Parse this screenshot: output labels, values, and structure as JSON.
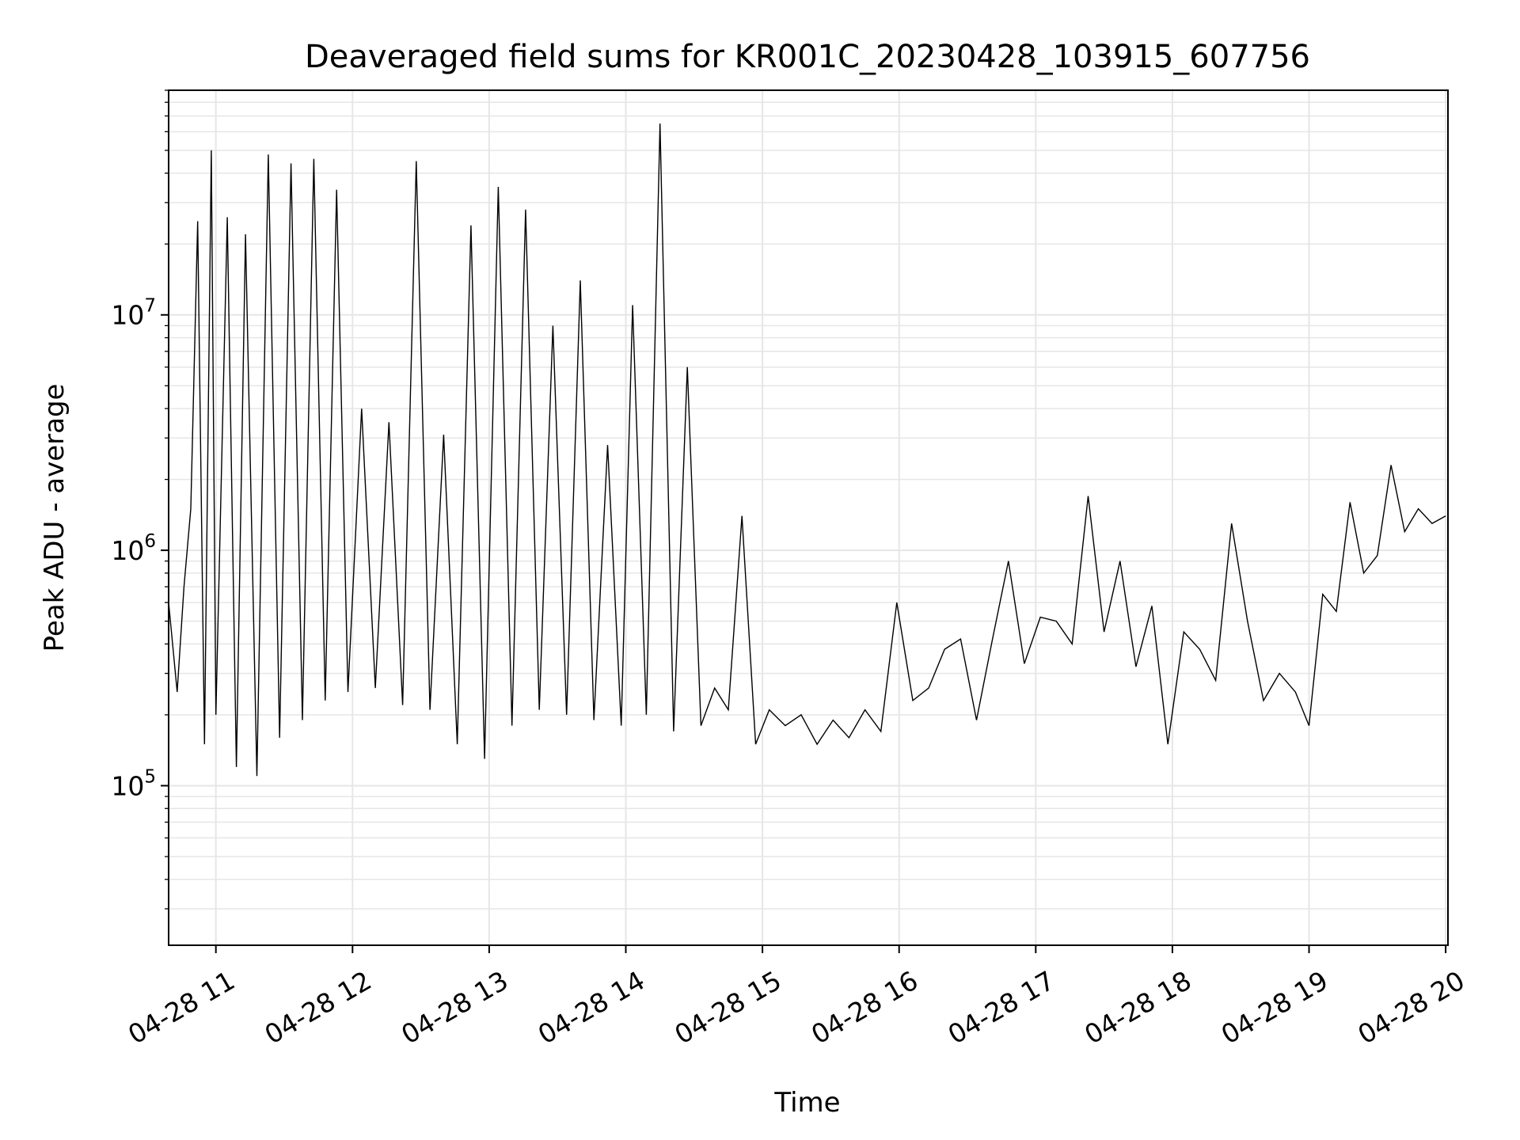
{
  "chart_data": {
    "type": "line",
    "title": "Deaveraged field sums for KR001C_20230428_103915_607756",
    "xlabel": "Time",
    "ylabel": "Peak ADU - average",
    "y_scale": "log",
    "ylim": [
      21000,
      90000000
    ],
    "xlim": [
      "2023-04-28T10:39:15",
      "2023-04-28T20:01:00"
    ],
    "grid": true,
    "line_color": "#000000",
    "grid_color": "#e6e6e6",
    "x_ticks": [
      {
        "label": "04-28 11",
        "time": "2023-04-28T11:00:00"
      },
      {
        "label": "04-28 12",
        "time": "2023-04-28T12:00:00"
      },
      {
        "label": "04-28 13",
        "time": "2023-04-28T13:00:00"
      },
      {
        "label": "04-28 14",
        "time": "2023-04-28T14:00:00"
      },
      {
        "label": "04-28 15",
        "time": "2023-04-28T15:00:00"
      },
      {
        "label": "04-28 16",
        "time": "2023-04-28T16:00:00"
      },
      {
        "label": "04-28 17",
        "time": "2023-04-28T17:00:00"
      },
      {
        "label": "04-28 18",
        "time": "2023-04-28T18:00:00"
      },
      {
        "label": "04-28 19",
        "time": "2023-04-28T19:00:00"
      },
      {
        "label": "04-28 20",
        "time": "2023-04-28T20:00:00"
      }
    ],
    "y_ticks": [
      {
        "base": "10",
        "exp": "5",
        "value": 100000
      },
      {
        "base": "10",
        "exp": "6",
        "value": 1000000
      },
      {
        "base": "10",
        "exp": "7",
        "value": 10000000
      }
    ],
    "series": [
      {
        "x": [
          "2023-04-28T10:39:15",
          "2023-04-28T10:43:00",
          "2023-04-28T10:46:00",
          "2023-04-28T10:49:00",
          "2023-04-28T10:52:00",
          "2023-04-28T10:55:00",
          "2023-04-28T10:58:00",
          "2023-04-28T11:00:00",
          "2023-04-28T11:05:00",
          "2023-04-28T11:09:00",
          "2023-04-28T11:13:00",
          "2023-04-28T11:18:00",
          "2023-04-28T11:23:00",
          "2023-04-28T11:28:00",
          "2023-04-28T11:33:00",
          "2023-04-28T11:38:00",
          "2023-04-28T11:43:00",
          "2023-04-28T11:48:00",
          "2023-04-28T11:53:00",
          "2023-04-28T11:58:00",
          "2023-04-28T12:04:00",
          "2023-04-28T12:10:00",
          "2023-04-28T12:16:00",
          "2023-04-28T12:22:00",
          "2023-04-28T12:28:00",
          "2023-04-28T12:34:00",
          "2023-04-28T12:40:00",
          "2023-04-28T12:46:00",
          "2023-04-28T12:52:00",
          "2023-04-28T12:58:00",
          "2023-04-28T13:04:00",
          "2023-04-28T13:10:00",
          "2023-04-28T13:16:00",
          "2023-04-28T13:22:00",
          "2023-04-28T13:28:00",
          "2023-04-28T13:34:00",
          "2023-04-28T13:40:00",
          "2023-04-28T13:46:00",
          "2023-04-28T13:52:00",
          "2023-04-28T13:58:00",
          "2023-04-28T14:03:00",
          "2023-04-28T14:09:00",
          "2023-04-28T14:15:00",
          "2023-04-28T14:21:00",
          "2023-04-28T14:27:00",
          "2023-04-28T14:33:00",
          "2023-04-28T14:39:00",
          "2023-04-28T14:45:00",
          "2023-04-28T14:51:00",
          "2023-04-28T14:57:00",
          "2023-04-28T15:03:00",
          "2023-04-28T15:10:00",
          "2023-04-28T15:17:00",
          "2023-04-28T15:24:00",
          "2023-04-28T15:31:00",
          "2023-04-28T15:38:00",
          "2023-04-28T15:45:00",
          "2023-04-28T15:52:00",
          "2023-04-28T15:59:00",
          "2023-04-28T16:06:00",
          "2023-04-28T16:13:00",
          "2023-04-28T16:20:00",
          "2023-04-28T16:27:00",
          "2023-04-28T16:34:00",
          "2023-04-28T16:41:00",
          "2023-04-28T16:48:00",
          "2023-04-28T16:55:00",
          "2023-04-28T17:02:00",
          "2023-04-28T17:09:00",
          "2023-04-28T17:16:00",
          "2023-04-28T17:23:00",
          "2023-04-28T17:30:00",
          "2023-04-28T17:37:00",
          "2023-04-28T17:44:00",
          "2023-04-28T17:51:00",
          "2023-04-28T17:58:00",
          "2023-04-28T18:05:00",
          "2023-04-28T18:12:00",
          "2023-04-28T18:19:00",
          "2023-04-28T18:26:00",
          "2023-04-28T18:33:00",
          "2023-04-28T18:40:00",
          "2023-04-28T18:47:00",
          "2023-04-28T18:54:00",
          "2023-04-28T19:00:00",
          "2023-04-28T19:06:00",
          "2023-04-28T19:12:00",
          "2023-04-28T19:18:00",
          "2023-04-28T19:24:00",
          "2023-04-28T19:30:00",
          "2023-04-28T19:36:00",
          "2023-04-28T19:42:00",
          "2023-04-28T19:48:00",
          "2023-04-28T19:54:00",
          "2023-04-28T20:00:00"
        ],
        "y": [
          600000,
          250000,
          700000,
          1500000,
          25000000,
          150000,
          50000000,
          200000,
          26000000,
          120000,
          22000000,
          110000,
          48000000,
          160000,
          44000000,
          190000,
          46000000,
          230000,
          34000000,
          250000,
          4000000,
          260000,
          3500000,
          220000,
          45000000,
          210000,
          3100000,
          150000,
          24000000,
          130000,
          35000000,
          180000,
          28000000,
          210000,
          9000000,
          200000,
          14000000,
          190000,
          2800000,
          180000,
          11000000,
          200000,
          65000000,
          170000,
          6000000,
          180000,
          260000,
          210000,
          1400000,
          150000,
          210000,
          180000,
          200000,
          150000,
          190000,
          160000,
          210000,
          170000,
          600000,
          230000,
          260000,
          380000,
          420000,
          190000,
          420000,
          900000,
          330000,
          520000,
          500000,
          400000,
          1700000,
          450000,
          900000,
          320000,
          580000,
          150000,
          450000,
          380000,
          280000,
          1300000,
          500000,
          230000,
          300000,
          250000,
          180000,
          650000,
          550000,
          1600000,
          800000,
          950000,
          2300000,
          1200000,
          1500000,
          1300000,
          1400000
        ]
      }
    ]
  }
}
